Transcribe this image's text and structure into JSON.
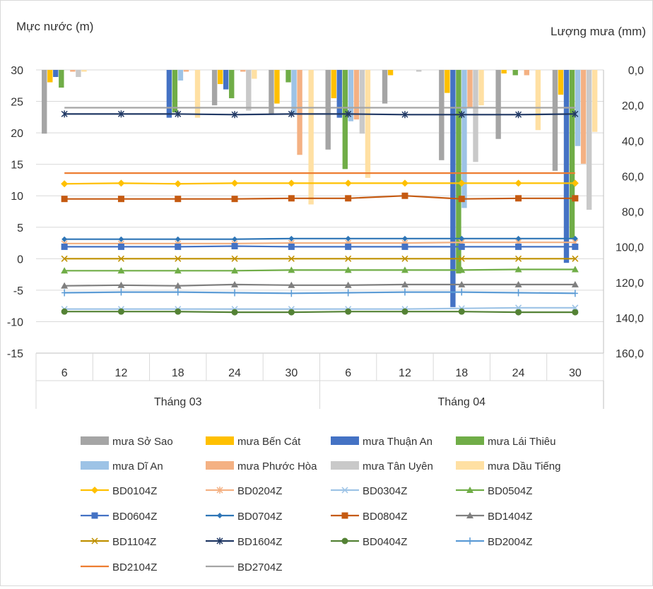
{
  "chart_data": {
    "type": "bar+line",
    "left_axis_label": "Mực nước (m)",
    "right_axis_label": "Lượng mưa (mm)",
    "left_ylim": [
      -15,
      30
    ],
    "left_ticks": [
      "30",
      "25",
      "20",
      "15",
      "10",
      "5",
      "0",
      "-5",
      "-10",
      "-15"
    ],
    "right_ylim": [
      0,
      160
    ],
    "right_inverted": true,
    "right_ticks": [
      "0,0",
      "20,0",
      "40,0",
      "60,0",
      "80,0",
      "100,0",
      "120,0",
      "140,0",
      "160,0"
    ],
    "categories": [
      "6",
      "12",
      "18",
      "24",
      "30",
      "6",
      "12",
      "18",
      "24",
      "30"
    ],
    "groups": [
      {
        "label": "Tháng 03",
        "span": 5
      },
      {
        "label": "Tháng 04",
        "span": 5
      }
    ],
    "rain_series": [
      {
        "name": "mưa Sở Sao",
        "color": "#A5A5A5",
        "values": [
          36,
          0,
          0,
          20,
          25,
          45,
          19,
          51,
          39,
          57
        ]
      },
      {
        "name": "mưa Bến Cát",
        "color": "#FFC000",
        "values": [
          7,
          0,
          0,
          8,
          19,
          16,
          3,
          13,
          2,
          14
        ]
      },
      {
        "name": "mưa Thuận An",
        "color": "#4472C4",
        "values": [
          4,
          0,
          27,
          11,
          0,
          27,
          0,
          134,
          0,
          109
        ]
      },
      {
        "name": "mưa Lái Thiêu",
        "color": "#70AD47",
        "values": [
          10,
          0,
          24,
          16,
          7,
          56,
          0,
          115,
          3,
          95
        ]
      },
      {
        "name": "mưa Dĩ An",
        "color": "#9DC3E6",
        "values": [
          0,
          0,
          6,
          0,
          25,
          29,
          0,
          78,
          0,
          43
        ]
      },
      {
        "name": "mưa Phước Hòa",
        "color": "#F4B183",
        "values": [
          1,
          0,
          1,
          1,
          48,
          28,
          0,
          21,
          3,
          53
        ]
      },
      {
        "name": "mưa Tân Uyên",
        "color": "#C9C9C9",
        "values": [
          4,
          0,
          0,
          23,
          0,
          36,
          1,
          52,
          0,
          79
        ]
      },
      {
        "name": "mưa Dầu Tiếng",
        "color": "#FFE0A3",
        "values": [
          1,
          0,
          27,
          5,
          76,
          61,
          0,
          20,
          34,
          35
        ]
      }
    ],
    "level_series": [
      {
        "name": "BD0104Z",
        "color": "#FFC000",
        "marker": "diamond",
        "values": [
          11.9,
          12.0,
          11.9,
          12.0,
          12.0,
          12.0,
          12.0,
          12.0,
          12.0,
          12.0
        ]
      },
      {
        "name": "BD0204Z",
        "color": "#F4B183",
        "marker": "asterisk",
        "values": [
          2.4,
          2.4,
          2.4,
          2.4,
          2.5,
          2.5,
          2.5,
          2.6,
          2.6,
          2.6
        ]
      },
      {
        "name": "BD0304Z",
        "color": "#9DC3E6",
        "marker": "x",
        "values": [
          -8.0,
          -8.0,
          -8.0,
          -8.0,
          -8.0,
          -8.0,
          -8.0,
          -7.9,
          -7.8,
          -7.8
        ]
      },
      {
        "name": "BD0504Z",
        "color": "#70AD47",
        "marker": "triangle",
        "values": [
          -1.9,
          -1.9,
          -1.9,
          -1.9,
          -1.8,
          -1.8,
          -1.8,
          -1.8,
          -1.7,
          -1.7
        ]
      },
      {
        "name": "BD0604Z",
        "color": "#4472C4",
        "marker": "square",
        "values": [
          1.9,
          1.9,
          1.9,
          2.0,
          1.9,
          1.9,
          1.9,
          1.9,
          1.9,
          1.9
        ]
      },
      {
        "name": "BD0704Z",
        "color": "#2E75B6",
        "marker": "diamond-small",
        "values": [
          3.1,
          3.1,
          3.1,
          3.1,
          3.2,
          3.2,
          3.2,
          3.2,
          3.2,
          3.2
        ]
      },
      {
        "name": "BD0804Z",
        "color": "#C55A11",
        "marker": "square",
        "values": [
          9.5,
          9.5,
          9.5,
          9.5,
          9.6,
          9.6,
          10.0,
          9.5,
          9.6,
          9.6
        ]
      },
      {
        "name": "BD1404Z",
        "color": "#7F7F7F",
        "marker": "triangle",
        "values": [
          -4.3,
          -4.2,
          -4.3,
          -4.1,
          -4.2,
          -4.2,
          -4.1,
          -4.1,
          -4.1,
          -4.1
        ]
      },
      {
        "name": "BD1104Z",
        "color": "#BF9000",
        "marker": "x",
        "values": [
          0.0,
          0.0,
          0.0,
          0.0,
          0.0,
          0.0,
          0.0,
          0.0,
          0.0,
          0.0
        ]
      },
      {
        "name": "BD1604Z",
        "color": "#203864",
        "marker": "asterisk",
        "values": [
          23.0,
          23.0,
          23.0,
          22.9,
          23.0,
          23.0,
          22.9,
          22.9,
          22.9,
          23.0
        ]
      },
      {
        "name": "BD0404Z",
        "color": "#548235",
        "marker": "circle",
        "values": [
          -8.4,
          -8.4,
          -8.4,
          -8.5,
          -8.5,
          -8.4,
          -8.4,
          -8.4,
          -8.5,
          -8.5
        ]
      },
      {
        "name": "BD2004Z",
        "color": "#5B9BD5",
        "marker": "plus",
        "values": [
          -5.4,
          -5.3,
          -5.3,
          -5.4,
          -5.5,
          -5.4,
          -5.3,
          -5.3,
          -5.4,
          -5.5
        ]
      },
      {
        "name": "BD2104Z",
        "color": "#ED7D31",
        "marker": "none",
        "values": [
          13.6,
          13.6,
          13.6,
          13.6,
          13.6,
          13.6,
          13.6,
          13.6,
          13.6,
          13.6
        ]
      },
      {
        "name": "BD2704Z",
        "color": "#A5A5A5",
        "marker": "none",
        "values": [
          24.0,
          24.0,
          24.0,
          24.0,
          24.0,
          24.0,
          24.0,
          24.0,
          24.0,
          24.0
        ]
      }
    ]
  }
}
